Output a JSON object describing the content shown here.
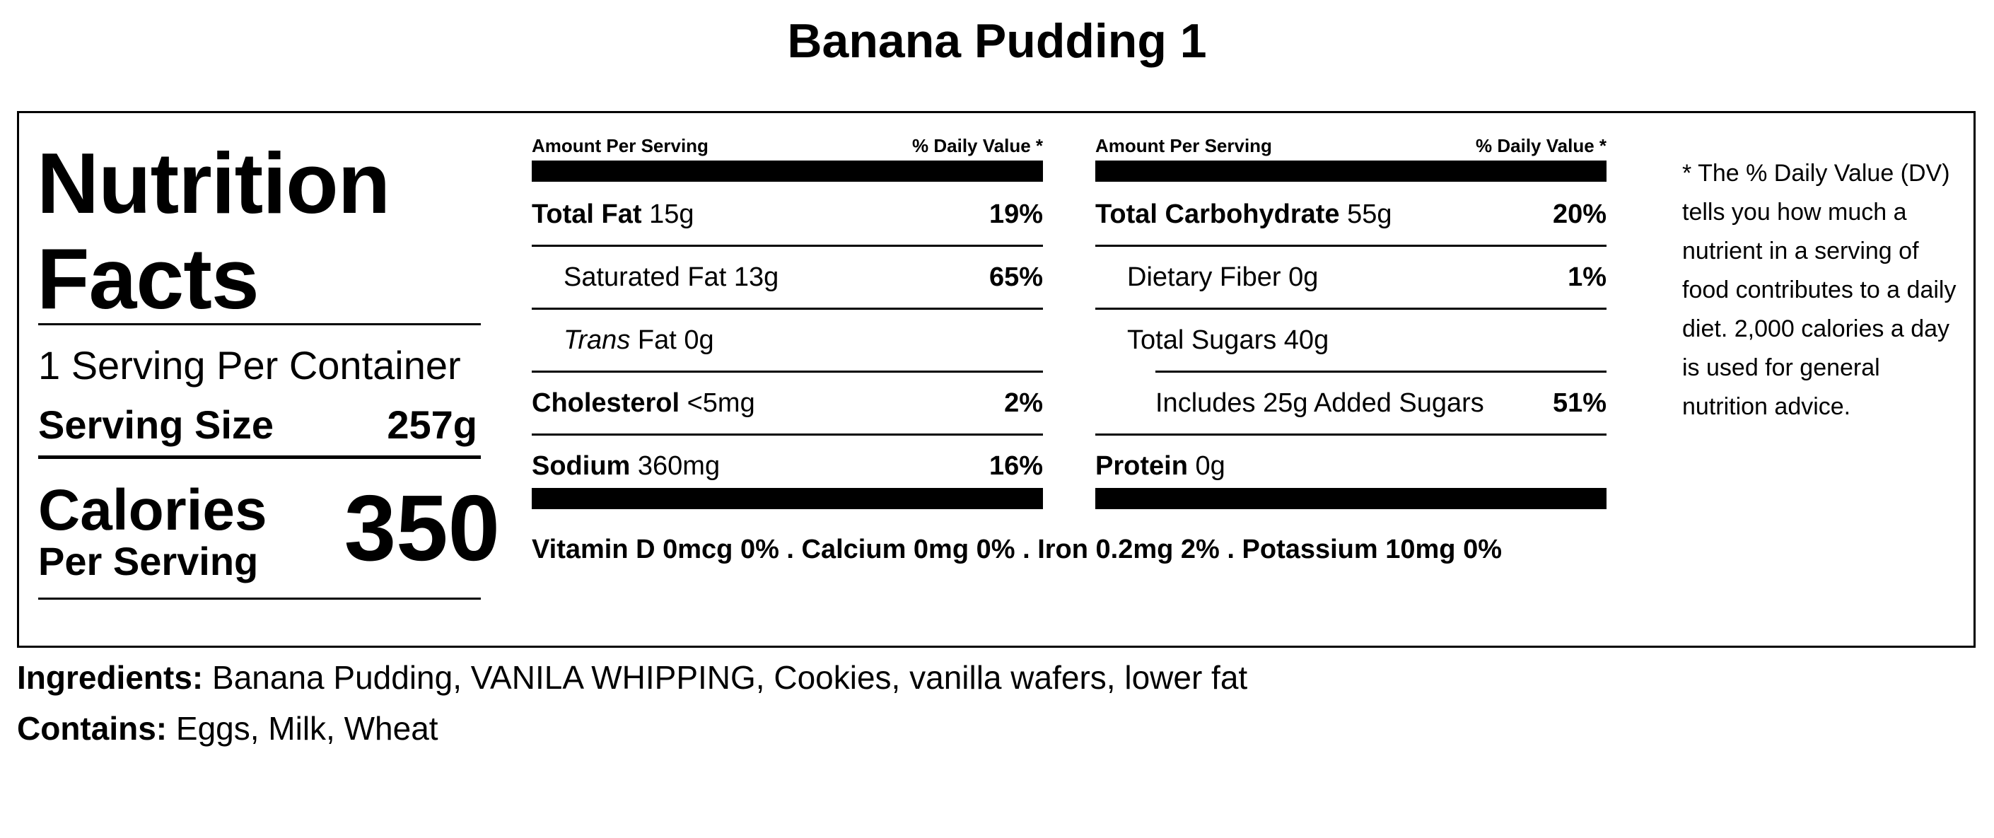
{
  "title": "Banana Pudding 1",
  "label": {
    "heading_line1": "Nutrition",
    "heading_line2": "Facts",
    "servings_per_container": "1 Serving Per Container",
    "serving_size_label": "Serving Size",
    "serving_size_value": "257g",
    "calories_label": "Calories",
    "calories_sublabel": "Per Serving",
    "calories_value": "350"
  },
  "column_headers": {
    "amount": "Amount Per Serving",
    "daily_value": "% Daily Value *"
  },
  "left_nutrients": [
    {
      "name": "Total Fat",
      "amount": "15g",
      "pct": "19%"
    },
    {
      "name": "Saturated Fat",
      "amount": "13g",
      "pct": "65%"
    },
    {
      "name": "Trans",
      "suffix": "Fat",
      "amount": "0g",
      "pct": ""
    },
    {
      "name": "Cholesterol",
      "amount": "<5mg",
      "pct": "2%"
    },
    {
      "name": "Sodium",
      "amount": "360mg",
      "pct": "16%"
    }
  ],
  "right_nutrients": [
    {
      "name": "Total Carbohydrate",
      "amount": "55g",
      "pct": "20%"
    },
    {
      "name": "Dietary Fiber",
      "amount": "0g",
      "pct": "1%"
    },
    {
      "name": "Total Sugars",
      "amount": "40g",
      "pct": ""
    },
    {
      "name": "Includes 25g Added Sugars",
      "amount": "",
      "pct": "51%"
    },
    {
      "name": "Protein",
      "amount": "0g",
      "pct": ""
    }
  ],
  "vitamins": "Vitamin D 0mcg 0% . Calcium 0mg 0% . Iron 0.2mg 2% . Potassium 10mg 0%",
  "dv_note": "* The % Daily Value (DV) tells you how much a nutrient in a serving of food contributes to a daily diet. 2,000 calories a day is used for general nutrition advice.",
  "ingredients": {
    "label": "Ingredients:",
    "text": " Banana Pudding, VANILA WHIPPING, Cookies, vanilla wafers, lower fat"
  },
  "contains": {
    "label": "Contains:",
    "text": " Eggs, Milk, Wheat"
  }
}
